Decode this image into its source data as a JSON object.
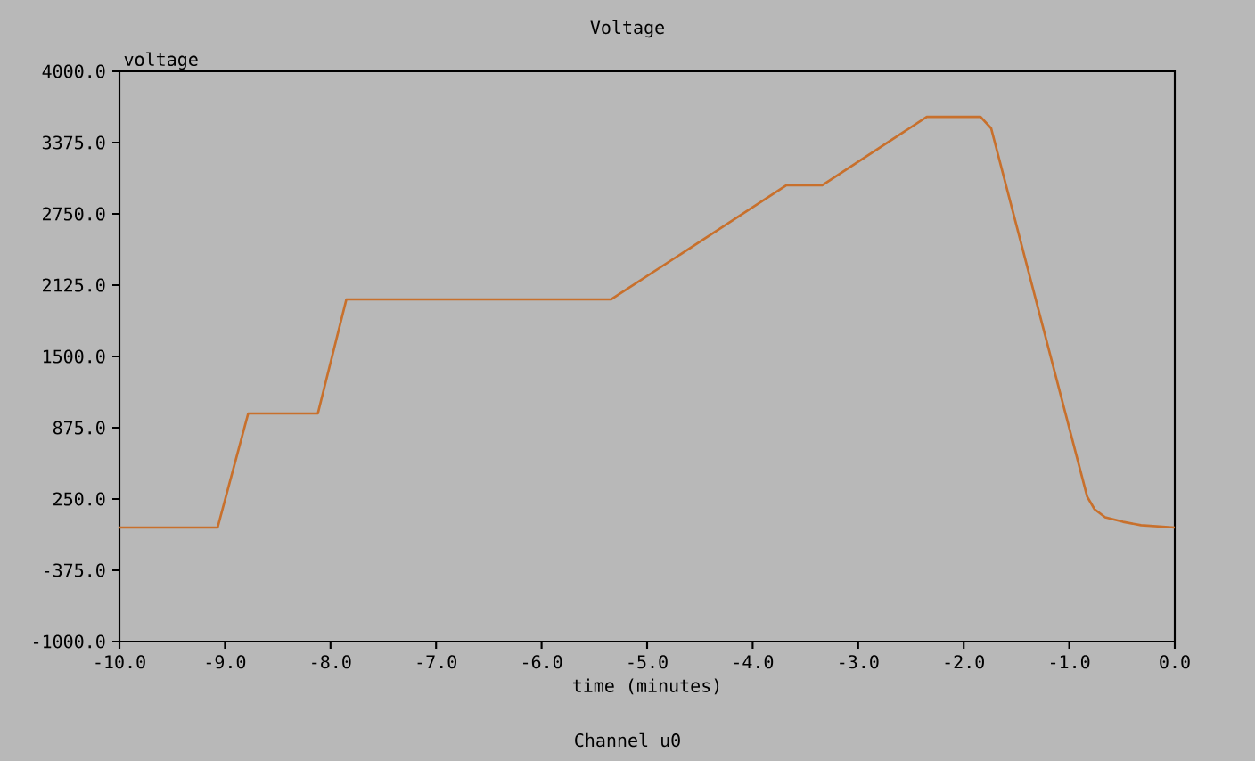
{
  "chart_data": {
    "type": "line",
    "title": "Voltage",
    "xlabel": "time (minutes)",
    "ylabel": "voltage",
    "annotations": [
      "Channel u0"
    ],
    "x": [
      -10,
      -9.07,
      -8.78,
      -8.12,
      -7.85,
      -5.34,
      -3.68,
      -3.34,
      -2.35,
      -1.84,
      -1.74,
      -0.83,
      -0.76,
      -0.66,
      -0.49,
      -0.32,
      0
    ],
    "series": [
      {
        "color": "#c8702c",
        "values": [
          0,
          0,
          1000,
          1000,
          2000,
          2000,
          3000,
          3000,
          3600,
          3600,
          3500,
          270,
          160,
          90,
          50,
          20,
          0
        ]
      }
    ],
    "xlim": [
      -10,
      0
    ],
    "ylim": [
      -1000,
      4000
    ],
    "xticks": [
      {
        "value": -10,
        "label": "-10.0"
      },
      {
        "value": -9,
        "label": "-9.0"
      },
      {
        "value": -8,
        "label": "-8.0"
      },
      {
        "value": -7,
        "label": "-7.0"
      },
      {
        "value": -6,
        "label": "-6.0"
      },
      {
        "value": -5,
        "label": "-5.0"
      },
      {
        "value": -4,
        "label": "-4.0"
      },
      {
        "value": -3,
        "label": "-3.0"
      },
      {
        "value": -2,
        "label": "-2.0"
      },
      {
        "value": -1,
        "label": "-1.0"
      },
      {
        "value": 0,
        "label": "0.0"
      }
    ],
    "yticks": [
      {
        "value": -1000,
        "label": "-1000.0"
      },
      {
        "value": -375,
        "label": "-375.0"
      },
      {
        "value": 250,
        "label": "250.0"
      },
      {
        "value": 875,
        "label": "875.0"
      },
      {
        "value": 1500,
        "label": "1500.0"
      },
      {
        "value": 2125,
        "label": "2125.0"
      },
      {
        "value": 2750,
        "label": "2750.0"
      },
      {
        "value": 3375,
        "label": "3375.0"
      },
      {
        "value": 4000,
        "label": "4000.0"
      }
    ],
    "grid": false,
    "marker": "none",
    "line_style": "solid"
  }
}
